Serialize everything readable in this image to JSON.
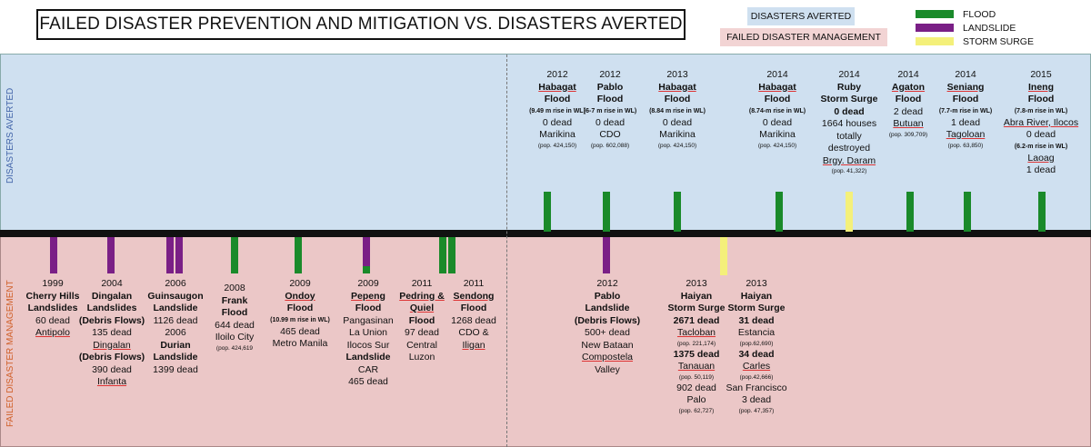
{
  "title": "FAILED DISASTER PREVENTION AND MITIGATION VS. DISASTERS AVERTED",
  "tags": {
    "averted": "DISASTERS AVERTED",
    "failed": "FAILED DISASTER MANAGEMENT"
  },
  "legend": [
    {
      "label": "FLOOD",
      "color": "#1a8a2a"
    },
    {
      "label": "LANDSLIDE",
      "color": "#7a1f86"
    },
    {
      "label": "STORM SURGE",
      "color": "#f4f07a"
    }
  ],
  "side_labels": {
    "top": "DISASTERS AVERTED",
    "bottom": "FAILED DISASTER MANAGEMENT"
  },
  "colors": {
    "flood": "#1a8a2a",
    "landslide": "#7a1f86",
    "surge": "#f4f07a"
  },
  "averted": [
    {
      "lines": [
        [
          "2012",
          ""
        ],
        [
          "Habagat",
          "b u"
        ],
        [
          "Flood",
          "b"
        ],
        [
          "(9.49 m rise in WL)",
          "bs"
        ],
        [
          "0 dead",
          ""
        ],
        [
          "Marikina",
          ""
        ],
        [
          "(pop. 424,150)",
          "sm"
        ]
      ]
    },
    {
      "lines": [
        [
          "2012",
          ""
        ],
        [
          "Pablo",
          "b"
        ],
        [
          "Flood",
          "b"
        ],
        [
          "(6-7 m rise in WL)",
          "bs"
        ],
        [
          "0 dead",
          ""
        ],
        [
          "CDO",
          ""
        ],
        [
          "(pop. 602,088)",
          "sm"
        ]
      ]
    },
    {
      "lines": [
        [
          "2013",
          ""
        ],
        [
          "Habagat",
          "b u"
        ],
        [
          "Flood",
          "b"
        ],
        [
          "(8.84 m rise in WL)",
          "bs"
        ],
        [
          "0 dead",
          ""
        ],
        [
          "Marikina",
          ""
        ],
        [
          "(pop. 424,150)",
          "sm"
        ]
      ]
    },
    {
      "lines": [
        [
          "2014",
          ""
        ],
        [
          "Habagat",
          "b u"
        ],
        [
          "Flood",
          "b"
        ],
        [
          "(8.74-m rise in WL)",
          "bs"
        ],
        [
          "0 dead",
          ""
        ],
        [
          "Marikina",
          ""
        ],
        [
          "(pop. 424,150)",
          "sm"
        ]
      ]
    },
    {
      "lines": [
        [
          "2014",
          ""
        ],
        [
          "Ruby",
          "b"
        ],
        [
          "Storm Surge",
          "b"
        ],
        [
          "0 dead",
          "b"
        ],
        [
          "1664 houses",
          ""
        ],
        [
          "totally",
          ""
        ],
        [
          "destroyed",
          ""
        ],
        [
          "Brgy. Daram",
          "u"
        ],
        [
          "(pop. 41,322)",
          "sm"
        ]
      ]
    },
    {
      "lines": [
        [
          "2014",
          ""
        ],
        [
          "Agaton",
          "b u"
        ],
        [
          "Flood",
          "b"
        ],
        [
          "2 dead",
          ""
        ],
        [
          "Butuan",
          "u"
        ],
        [
          "(pop. 309,709)",
          "sm"
        ]
      ]
    },
    {
      "lines": [
        [
          "2014",
          ""
        ],
        [
          "Seniang",
          "b u"
        ],
        [
          "Flood",
          "b"
        ],
        [
          "(7.7-m rise in WL)",
          "bs"
        ],
        [
          "1 dead",
          ""
        ],
        [
          "Tagoloan",
          "u"
        ],
        [
          "(pop. 63,850)",
          "sm"
        ]
      ]
    },
    {
      "lines": [
        [
          "2015",
          ""
        ],
        [
          "Ineng",
          "b u"
        ],
        [
          "Flood",
          "b"
        ],
        [
          "(7.8-m rise in WL)",
          "bs"
        ],
        [
          "Abra River, Ilocos",
          "u"
        ],
        [
          "0 dead",
          ""
        ],
        [
          "(6.2-m rise in WL)",
          "bs"
        ],
        [
          "Laoag",
          "u"
        ],
        [
          "1 dead",
          ""
        ]
      ]
    }
  ],
  "failed": [
    {
      "lines": [
        [
          "1999",
          ""
        ],
        [
          "Cherry Hills",
          "b"
        ],
        [
          "Landslides",
          "b"
        ],
        [
          "60 dead",
          ""
        ],
        [
          "Antipolo",
          "u"
        ]
      ]
    },
    {
      "lines": [
        [
          "2004",
          ""
        ],
        [
          "Dingalan",
          "b"
        ],
        [
          "Landslides",
          "b"
        ],
        [
          "(Debris Flows)",
          "b"
        ],
        [
          "135 dead",
          ""
        ],
        [
          "Dingalan",
          "u"
        ],
        [
          "(Debris Flows)",
          "b"
        ],
        [
          "390 dead",
          ""
        ],
        [
          "Infanta",
          "u"
        ]
      ]
    },
    {
      "lines": [
        [
          "2006",
          ""
        ],
        [
          "Guinsaugon",
          "b"
        ],
        [
          "Landslide",
          "b"
        ],
        [
          "1126 dead",
          ""
        ],
        [
          "2006",
          ""
        ],
        [
          "Durian",
          "b"
        ],
        [
          "Landslide",
          "b"
        ],
        [
          "1399 dead",
          ""
        ]
      ]
    },
    {
      "lines": [
        [
          "2008",
          ""
        ],
        [
          "Frank",
          "b"
        ],
        [
          "Flood",
          "b"
        ],
        [
          "644 dead",
          ""
        ],
        [
          "Iloilo City",
          ""
        ],
        [
          "(pop. 424,619",
          "sm"
        ]
      ]
    },
    {
      "lines": [
        [
          "2009",
          ""
        ],
        [
          "Ondoy",
          "b u"
        ],
        [
          "Flood",
          "b"
        ],
        [
          "(10.99 m rise in WL)",
          "bs"
        ],
        [
          "465 dead",
          ""
        ],
        [
          "Metro Manila",
          ""
        ]
      ]
    },
    {
      "lines": [
        [
          "2009",
          ""
        ],
        [
          "Pepeng",
          "b u"
        ],
        [
          "Flood",
          "b"
        ],
        [
          "Pangasinan",
          ""
        ],
        [
          "La Union",
          ""
        ],
        [
          "Ilocos Sur",
          ""
        ],
        [
          "Landslide",
          "b"
        ],
        [
          "CAR",
          ""
        ],
        [
          "465 dead",
          ""
        ]
      ]
    },
    {
      "lines": [
        [
          "2011",
          ""
        ],
        [
          "Pedring &",
          "b u"
        ],
        [
          "Quiel",
          "b u"
        ],
        [
          "Flood",
          "b"
        ],
        [
          "97 dead",
          ""
        ],
        [
          "Central",
          ""
        ],
        [
          "Luzon",
          ""
        ]
      ]
    },
    {
      "lines": [
        [
          "2011",
          ""
        ],
        [
          "Sendong",
          "b u"
        ],
        [
          "Flood",
          "b"
        ],
        [
          "1268 dead",
          ""
        ],
        [
          "CDO &",
          ""
        ],
        [
          "Iligan",
          "u"
        ]
      ]
    },
    {
      "lines": [
        [
          "2012",
          ""
        ],
        [
          "Pablo",
          "b"
        ],
        [
          "Landslide",
          "b"
        ],
        [
          "(Debris Flows)",
          "b"
        ],
        [
          "500+ dead",
          ""
        ],
        [
          "New Bataan",
          ""
        ],
        [
          "Compostela",
          "u"
        ],
        [
          "Valley",
          ""
        ]
      ]
    },
    {
      "lines": [
        [
          "2013",
          ""
        ],
        [
          "Haiyan",
          "b"
        ],
        [
          "Storm Surge",
          "b"
        ],
        [
          "2671 dead",
          "b"
        ],
        [
          "Tacloban",
          "u"
        ],
        [
          "(pop. 221,174)",
          "sm"
        ],
        [
          "1375 dead",
          "b"
        ],
        [
          "Tanauan",
          "u"
        ],
        [
          "(pop. 50,119)",
          "sm"
        ],
        [
          "902 dead",
          ""
        ],
        [
          "Palo",
          ""
        ],
        [
          "(pop. 62,727)",
          "sm"
        ]
      ]
    },
    {
      "lines": [
        [
          "2013",
          ""
        ],
        [
          "Haiyan",
          "b"
        ],
        [
          "Storm Surge",
          "b"
        ],
        [
          "31 dead",
          "b"
        ],
        [
          "Estancia",
          ""
        ],
        [
          "(pop.62,690)",
          "sm"
        ],
        [
          "34 dead",
          "b"
        ],
        [
          "Carles",
          "u"
        ],
        [
          "(pop.42,666)",
          "sm"
        ],
        [
          "San Francisco",
          ""
        ],
        [
          "3 dead",
          ""
        ],
        [
          "(pop. 47,357)",
          "sm"
        ]
      ]
    }
  ],
  "bars": [
    {
      "type": "flood",
      "dir": "up"
    },
    {
      "type": "flood",
      "dir": "up"
    },
    {
      "type": "flood",
      "dir": "up"
    },
    {
      "type": "flood",
      "dir": "up"
    },
    {
      "type": "surge",
      "dir": "up"
    },
    {
      "type": "flood",
      "dir": "up"
    },
    {
      "type": "flood",
      "dir": "up"
    },
    {
      "type": "flood",
      "dir": "up"
    },
    {
      "type": "landslide",
      "dir": "down"
    },
    {
      "type": "landslide",
      "dir": "down"
    },
    {
      "type": "landslide",
      "dir": "down"
    },
    {
      "type": "landslide",
      "dir": "down"
    },
    {
      "type": "flood",
      "dir": "down"
    },
    {
      "type": "flood",
      "dir": "down"
    },
    {
      "type": "landslide",
      "dir": "down",
      "tail": "flood"
    },
    {
      "type": "flood",
      "dir": "down"
    },
    {
      "type": "flood",
      "dir": "down"
    },
    {
      "type": "landslide",
      "dir": "down"
    },
    {
      "type": "surge",
      "dir": "down"
    }
  ]
}
